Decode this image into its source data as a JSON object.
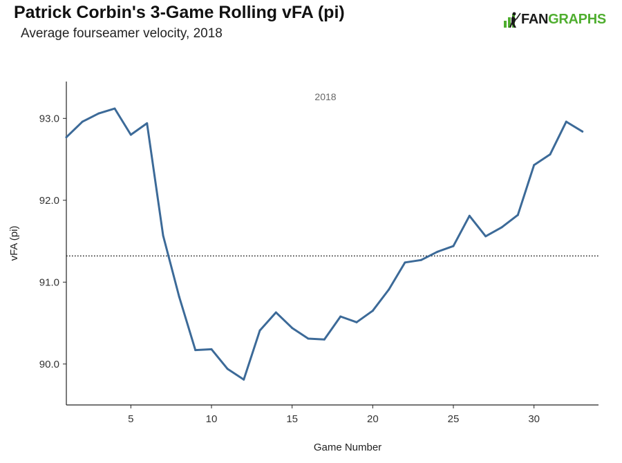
{
  "header": {
    "title": "Patrick Corbin's 3-Game Rolling vFA (pi)",
    "subtitle": "Average fourseamer velocity, 2018"
  },
  "brand": {
    "text_part1": "FAN",
    "text_part2": "GRAPHS",
    "color_dark": "#1a1a1a",
    "color_green": "#4fae2f"
  },
  "chart_data": {
    "type": "line",
    "title": "Patrick Corbin's 3-Game Rolling vFA (pi)",
    "subtitle": "Average fourseamer velocity, 2018",
    "facet_label": "2018",
    "xlabel": "Game Number",
    "ylabel": "vFA (pi)",
    "xlim": [
      1,
      34
    ],
    "ylim": [
      89.5,
      93.45
    ],
    "x_ticks": [
      5,
      10,
      15,
      20,
      25,
      30
    ],
    "y_ticks": [
      90.0,
      91.0,
      92.0,
      93.0
    ],
    "y_tick_labels": [
      "90.0",
      "91.0",
      "92.0",
      "93.0"
    ],
    "reference_line": {
      "y": 91.32,
      "style": "dotted"
    },
    "line_color": "#3c6a98",
    "series": [
      {
        "name": "3-Game Rolling vFA",
        "x": [
          1,
          2,
          3,
          4,
          5,
          6,
          7,
          8,
          9,
          10,
          11,
          12,
          13,
          14,
          15,
          16,
          17,
          18,
          19,
          20,
          21,
          22,
          23,
          24,
          25,
          26,
          27,
          28,
          29,
          30,
          31,
          32,
          33
        ],
        "values": [
          92.77,
          92.96,
          93.06,
          93.12,
          92.8,
          92.94,
          91.57,
          90.82,
          90.17,
          90.18,
          89.94,
          89.81,
          90.41,
          90.63,
          90.44,
          90.31,
          90.3,
          90.58,
          90.51,
          90.65,
          90.91,
          91.24,
          91.27,
          91.37,
          91.44,
          91.81,
          91.56,
          91.67,
          91.82,
          92.43,
          92.56,
          92.96,
          92.84
        ]
      }
    ]
  }
}
